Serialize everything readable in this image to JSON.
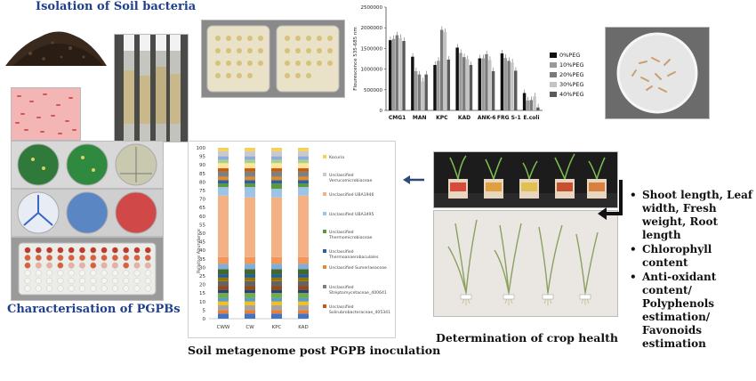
{
  "top_title": "Isolation of Soil bacteria",
  "characterisation_caption": "Characterisation of PGPBs",
  "metagenome_caption": "Soil metagenome post PGPB inoculation",
  "crop_health_caption": "Determination of crop health",
  "crop_parameters": [
    "Shoot length, Leaf width, Fresh weight, Root length",
    "Chlorophyll content",
    "Anti-oxidant content/ Polyphenols estimation/ Favonoids estimation"
  ],
  "fluorescence_chart": {
    "type": "bar",
    "ylabel": "Flourescence 535-685 nm",
    "ylim": [
      0,
      2500000
    ],
    "yticks": [
      "0",
      "500000",
      "1000000",
      "1500000",
      "2000000",
      "2500000"
    ],
    "categories": [
      "CMG1",
      "MAN",
      "KPC",
      "KAD",
      "ANK-6",
      "FRG S-1",
      "E.coli"
    ],
    "series": [
      {
        "name": "0%PEG",
        "color": "#111111",
        "values": [
          1700000,
          1300000,
          1100000,
          1520000,
          1260000,
          1380000,
          420000
        ]
      },
      {
        "name": "10%PEG",
        "color": "#9a9a9a",
        "values": [
          1730000,
          950000,
          1200000,
          1390000,
          1260000,
          1270000,
          240000
        ]
      },
      {
        "name": "20%PEG",
        "color": "#7a7a7a",
        "values": [
          1820000,
          870000,
          1950000,
          1290000,
          1360000,
          1200000,
          250000
        ]
      },
      {
        "name": "30%PEG",
        "color": "#c4c4c4",
        "values": [
          1750000,
          700000,
          1900000,
          1240000,
          1220000,
          1160000,
          340000
        ]
      },
      {
        "name": "40%PEG",
        "color": "#5a5a5a",
        "values": [
          1680000,
          870000,
          1230000,
          1100000,
          950000,
          960000,
          70000
        ]
      }
    ]
  },
  "metagenome_chart": {
    "type": "bar",
    "ylabel": "Relative Abundance",
    "ylim": [
      0,
      100
    ],
    "yticks": [
      "0",
      "5",
      "10",
      "15",
      "20",
      "25",
      "30",
      "35",
      "40",
      "45",
      "50",
      "55",
      "60",
      "65",
      "70",
      "75",
      "80",
      "85",
      "90",
      "95",
      "100"
    ],
    "categories": [
      "CWW",
      "CW",
      "KPC",
      "KAD"
    ],
    "legend": [
      {
        "name": "Kocuria",
        "color": "#f5d15a"
      },
      {
        "name": "Unclassified Verrucomicrobiaceae",
        "color": "#c9c9c9"
      },
      {
        "name": "Unclassified UBA1946",
        "color": "#f4b183"
      },
      {
        "name": "Unclassified UBA3495",
        "color": "#9dc3e6"
      },
      {
        "name": "Unclassified Thermomicrobiaceae",
        "color": "#5a9a3a"
      },
      {
        "name": "Unclassified Thermoanaerobaculales",
        "color": "#2e5fa3"
      },
      {
        "name": "Unclassified Sumerlaeaceae",
        "color": "#e38b2a"
      },
      {
        "name": "Unclassified Streptomycetaceae_400641",
        "color": "#7f7f7f"
      },
      {
        "name": "Unclassified Solirubrobacteraceae_405341",
        "color": "#c55a11"
      }
    ],
    "stacks": [
      [
        3,
        2,
        3,
        2,
        2,
        3,
        2,
        2,
        3,
        2,
        2,
        3,
        3,
        4,
        36,
        5,
        2,
        2,
        2,
        3,
        2,
        3,
        2,
        2,
        3,
        2
      ],
      [
        3,
        2,
        3,
        2,
        2,
        3,
        2,
        2,
        3,
        2,
        2,
        3,
        3,
        4,
        35,
        6,
        2,
        2,
        2,
        3,
        2,
        3,
        2,
        2,
        3,
        2
      ],
      [
        3,
        2,
        3,
        2,
        2,
        3,
        2,
        2,
        3,
        2,
        2,
        3,
        3,
        4,
        35,
        5,
        3,
        2,
        2,
        3,
        2,
        3,
        2,
        2,
        3,
        2
      ],
      [
        3,
        2,
        3,
        2,
        2,
        3,
        2,
        2,
        3,
        2,
        2,
        3,
        3,
        4,
        36,
        5,
        2,
        2,
        2,
        3,
        2,
        3,
        2,
        2,
        3,
        2
      ]
    ],
    "stack_colors": [
      "#4472c4",
      "#ed7d31",
      "#a5a5a5",
      "#ffc000",
      "#5b9bd5",
      "#70ad47",
      "#264478",
      "#9e480e",
      "#636363",
      "#997300",
      "#255e91",
      "#43682b",
      "#7cafdd",
      "#f1975a",
      "#f4b183",
      "#9dc3e6",
      "#5a9a3a",
      "#2e5fa3",
      "#e38b2a",
      "#7f7f7f",
      "#c55a11",
      "#ffe699",
      "#a9d18e",
      "#8faadc",
      "#c9c9c9",
      "#f5d15a"
    ]
  }
}
